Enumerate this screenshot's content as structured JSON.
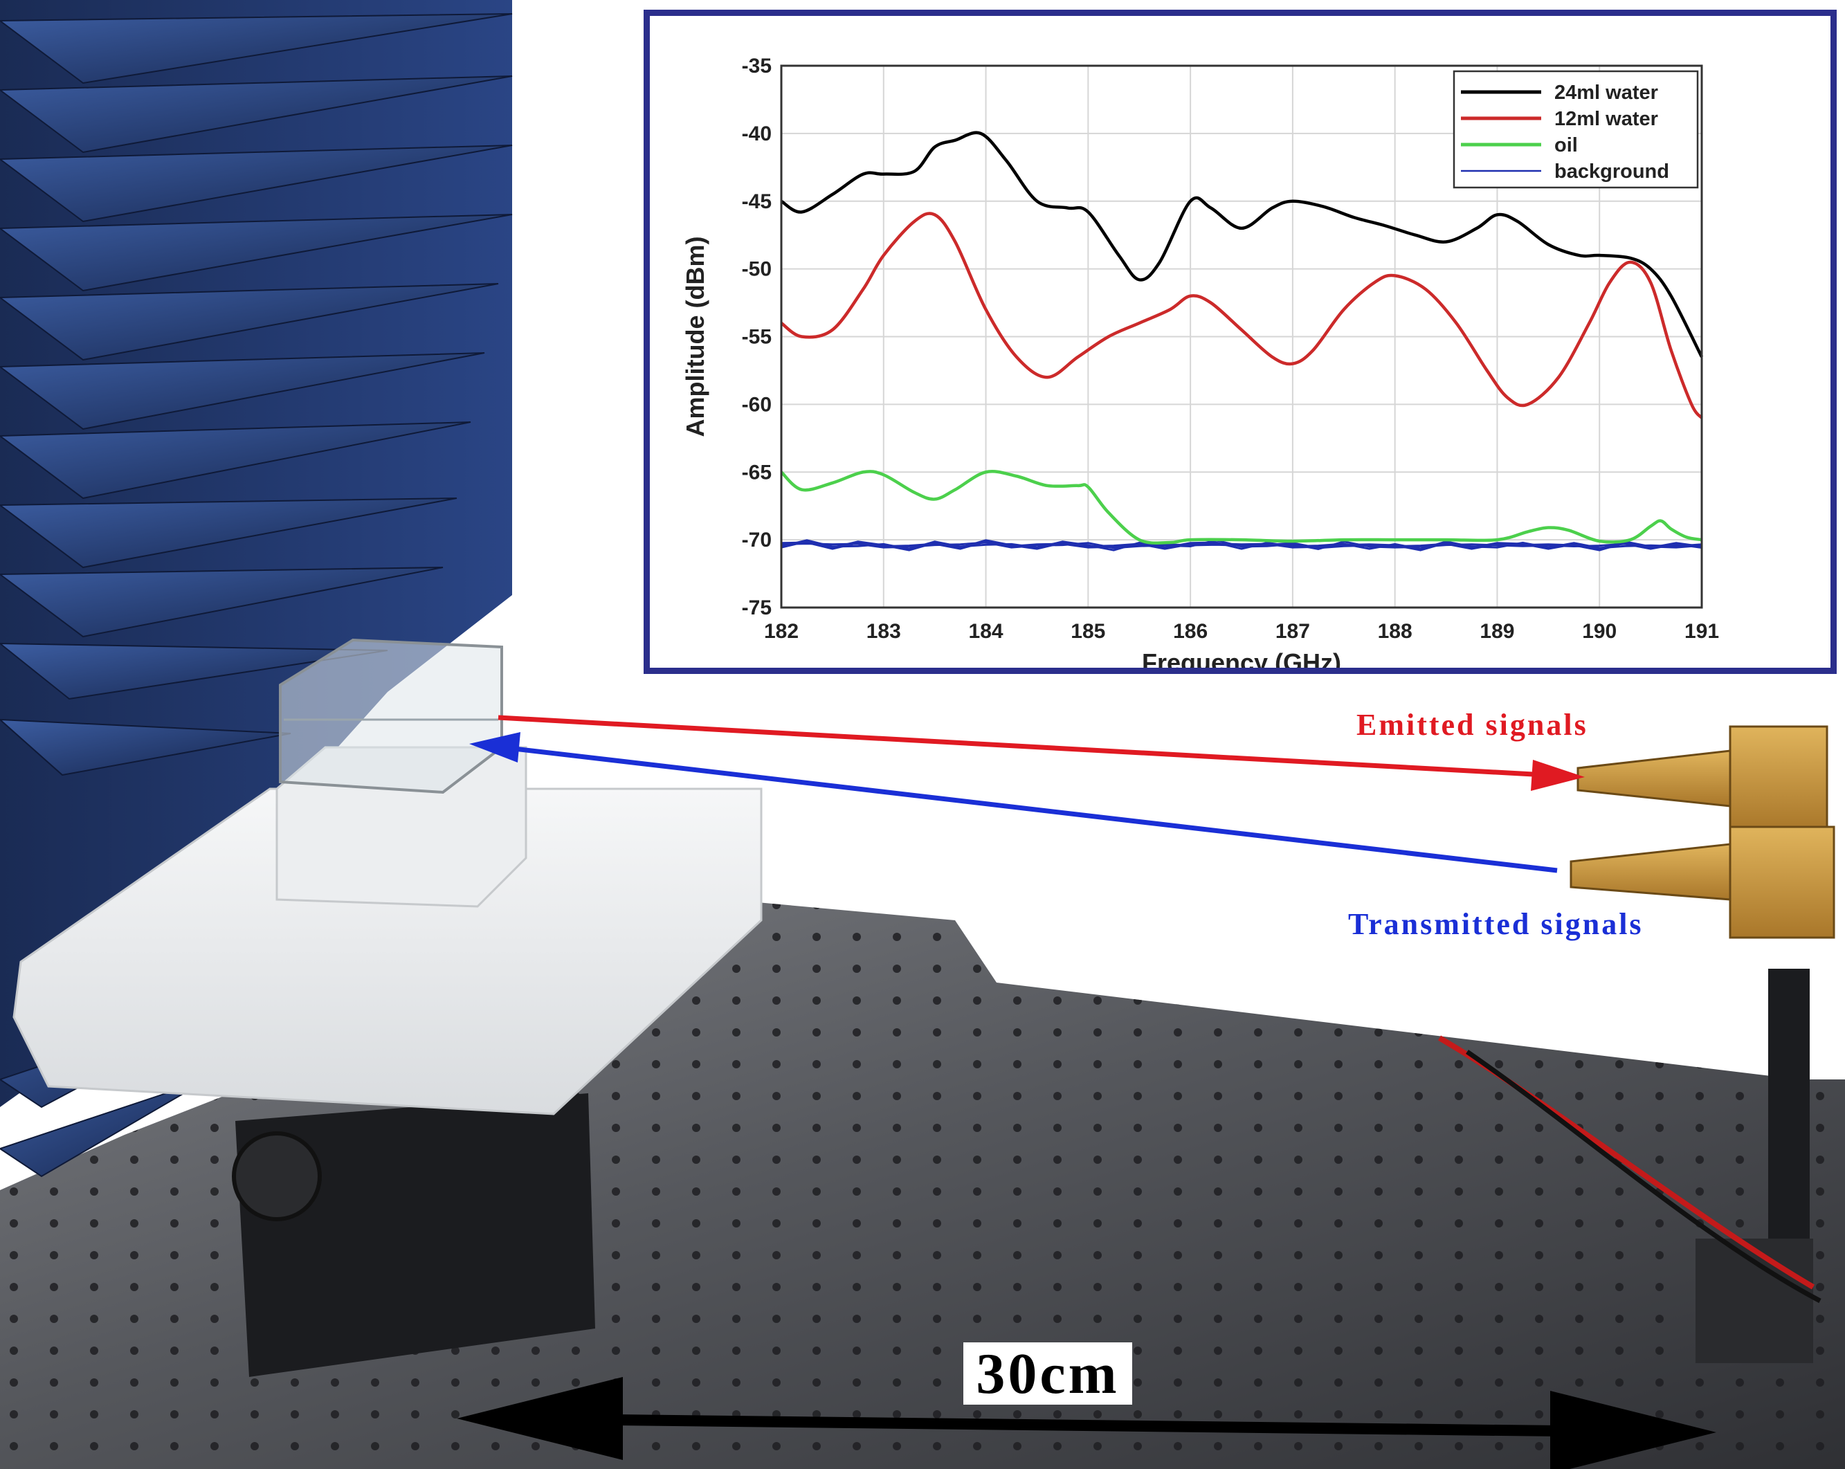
{
  "annotations": {
    "emitted": "Emitted signals",
    "transmitted": "Transmitted signals",
    "distance": "30cm"
  },
  "colors": {
    "emitted_arrow": "#e01a22",
    "transmitted_arrow": "#1a2fd6",
    "chart_border": "#2b2e8c"
  },
  "chart_data": {
    "type": "line",
    "xlabel": "Frequency (GHz)",
    "ylabel": "Amplitude (dBm)",
    "xlim": [
      182,
      191
    ],
    "ylim": [
      -75,
      -35
    ],
    "xticks": [
      182,
      183,
      184,
      185,
      186,
      187,
      188,
      189,
      190,
      191
    ],
    "yticks": [
      -35,
      -40,
      -45,
      -50,
      -55,
      -60,
      -65,
      -70,
      -75
    ],
    "grid": true,
    "legend_position": "top-right",
    "series": [
      {
        "name": "24ml water",
        "color": "#000000",
        "x": [
          182,
          182.2,
          182.5,
          182.8,
          183.0,
          183.3,
          183.5,
          183.7,
          183.95,
          184.2,
          184.5,
          184.8,
          185.0,
          185.3,
          185.5,
          185.7,
          186.0,
          186.2,
          186.5,
          186.8,
          187.0,
          187.3,
          187.6,
          187.9,
          188.2,
          188.5,
          188.8,
          189.0,
          189.2,
          189.5,
          189.8,
          190.0,
          190.3,
          190.5,
          190.7,
          191.0
        ],
        "values": [
          -45.0,
          -45.8,
          -44.5,
          -43.0,
          -43.0,
          -42.8,
          -41.0,
          -40.5,
          -40.0,
          -42.0,
          -45.0,
          -45.5,
          -45.8,
          -49.0,
          -50.8,
          -49.5,
          -45.0,
          -45.5,
          -47.0,
          -45.5,
          -45.0,
          -45.4,
          -46.2,
          -46.8,
          -47.5,
          -48.0,
          -47.0,
          -46.0,
          -46.5,
          -48.2,
          -49.0,
          -49.0,
          -49.2,
          -50.0,
          -52.0,
          -56.5
        ]
      },
      {
        "name": "12ml water",
        "color": "#cc2a2a",
        "x": [
          182,
          182.2,
          182.5,
          182.8,
          183.0,
          183.3,
          183.5,
          183.7,
          184.0,
          184.3,
          184.6,
          184.9,
          185.2,
          185.5,
          185.8,
          186.0,
          186.2,
          186.5,
          186.8,
          187.0,
          187.2,
          187.5,
          187.8,
          188.0,
          188.3,
          188.6,
          188.9,
          189.1,
          189.3,
          189.6,
          189.9,
          190.1,
          190.3,
          190.5,
          190.7,
          190.9,
          191.0
        ],
        "values": [
          -54.0,
          -55.0,
          -54.5,
          -51.5,
          -49.0,
          -46.5,
          -46.0,
          -48.0,
          -53.0,
          -56.5,
          -58.0,
          -56.5,
          -55.0,
          -54.0,
          -53.0,
          -52.0,
          -52.5,
          -54.5,
          -56.5,
          -57.0,
          -56.0,
          -53.0,
          -51.0,
          -50.5,
          -51.5,
          -54.0,
          -57.5,
          -59.5,
          -60.0,
          -58.0,
          -54.0,
          -51.0,
          -49.5,
          -51.0,
          -56.0,
          -60.0,
          -61.0
        ]
      },
      {
        "name": "oil",
        "color": "#4cd04c",
        "x": [
          182,
          182.2,
          182.5,
          182.8,
          183.0,
          183.3,
          183.5,
          183.7,
          184.0,
          184.3,
          184.6,
          184.9,
          185.0,
          185.2,
          185.5,
          185.8,
          186.0,
          186.5,
          187.0,
          187.5,
          188.0,
          188.5,
          189.0,
          189.3,
          189.5,
          189.7,
          190.0,
          190.3,
          190.5,
          190.6,
          190.7,
          190.85,
          191.0
        ],
        "values": [
          -65.0,
          -66.3,
          -65.8,
          -65.0,
          -65.2,
          -66.5,
          -67.0,
          -66.3,
          -65.0,
          -65.3,
          -66.0,
          -66.0,
          -66.1,
          -68.0,
          -70.0,
          -70.2,
          -70.0,
          -70.0,
          -70.1,
          -70.0,
          -70.0,
          -70.0,
          -70.0,
          -69.4,
          -69.1,
          -69.3,
          -70.1,
          -70.0,
          -69.0,
          -68.6,
          -69.2,
          -69.8,
          -70.0
        ]
      },
      {
        "name": "background",
        "color": "#1f2fb0",
        "x": [
          182,
          182.25,
          182.5,
          182.75,
          183,
          183.25,
          183.5,
          183.75,
          184,
          184.25,
          184.5,
          184.75,
          185,
          185.25,
          185.5,
          185.75,
          186,
          186.25,
          186.5,
          186.75,
          187,
          187.25,
          187.5,
          187.75,
          188,
          188.25,
          188.5,
          188.75,
          189,
          189.25,
          189.5,
          189.75,
          190,
          190.25,
          190.5,
          190.75,
          191
        ],
        "values": [
          -70.4,
          -70.2,
          -70.5,
          -70.3,
          -70.4,
          -70.6,
          -70.3,
          -70.5,
          -70.2,
          -70.4,
          -70.5,
          -70.3,
          -70.4,
          -70.6,
          -70.3,
          -70.5,
          -70.4,
          -70.2,
          -70.5,
          -70.3,
          -70.4,
          -70.6,
          -70.3,
          -70.5,
          -70.4,
          -70.6,
          -70.3,
          -70.5,
          -70.4,
          -70.3,
          -70.5,
          -70.4,
          -70.6,
          -70.3,
          -70.5,
          -70.4,
          -70.5
        ]
      }
    ]
  }
}
